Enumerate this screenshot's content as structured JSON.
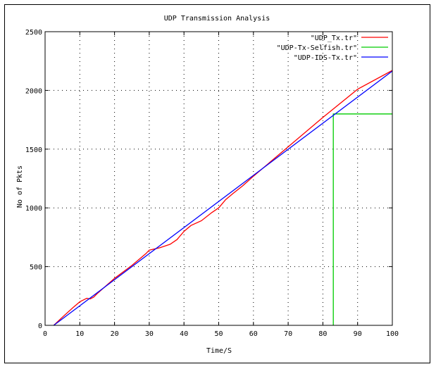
{
  "chart_data": {
    "type": "line",
    "title": "UDP Transmission Analysis",
    "xlabel": "Time/S",
    "ylabel": "No of Pkts",
    "xlim": [
      0,
      100
    ],
    "ylim": [
      0,
      2500
    ],
    "xticks": [
      "0",
      "10",
      "20",
      "30",
      "40",
      "50",
      "60",
      "70",
      "80",
      "90",
      "100"
    ],
    "yticks": [
      "0",
      "500",
      "1000",
      "1500",
      "2000",
      "2500"
    ],
    "grid": true,
    "legend_position": "top-right",
    "series": [
      {
        "name": "\"UDP_Tx.tr\"",
        "color": "#ff0000",
        "x": [
          2.5,
          5,
          8,
          10,
          12,
          13,
          14,
          15,
          20,
          25,
          29,
          30,
          33,
          36,
          38,
          40,
          42,
          45,
          48,
          50,
          52,
          54,
          57,
          60,
          70,
          80,
          90,
          100
        ],
        "y": [
          0,
          70,
          150,
          200,
          230,
          225,
          240,
          270,
          400,
          510,
          610,
          640,
          660,
          690,
          730,
          800,
          850,
          890,
          960,
          1000,
          1070,
          1120,
          1190,
          1270,
          1520,
          1770,
          2010,
          2170
        ]
      },
      {
        "name": "\"UDP-Tx-Selfish.tr\"",
        "color": "#00cc00",
        "x": [
          83,
          83,
          83,
          100
        ],
        "y": [
          0,
          1800,
          1800,
          1800
        ]
      },
      {
        "name": "\"UDP-IDS-Tx.tr\"",
        "color": "#0000ff",
        "x": [
          2.5,
          100
        ],
        "y": [
          0,
          2165
        ]
      }
    ]
  }
}
